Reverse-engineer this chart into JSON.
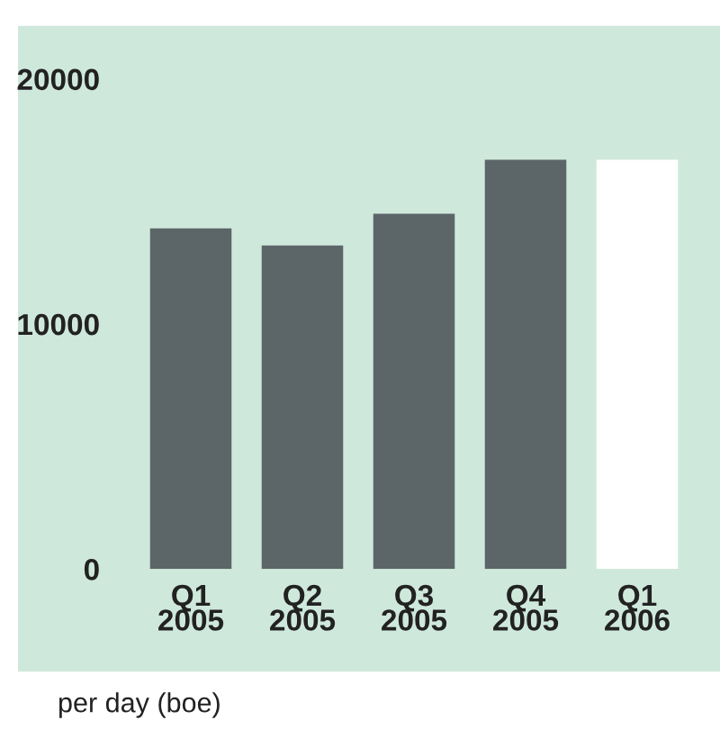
{
  "chart_data": {
    "type": "bar",
    "categories": [
      "Q1\n2005",
      "Q2\n2005",
      "Q3\n2005",
      "Q4\n2005",
      "Q1\n2006"
    ],
    "values": [
      13900,
      13200,
      14500,
      16700,
      16700
    ],
    "colors": [
      "#5c6568",
      "#5c6568",
      "#5c6568",
      "#5c6568",
      "#ffffff"
    ],
    "ylim": [
      0,
      20000
    ],
    "yticks": [
      0,
      10000,
      20000
    ],
    "grid": false,
    "legend": false,
    "annotations": [
      "per day (boe)"
    ]
  }
}
